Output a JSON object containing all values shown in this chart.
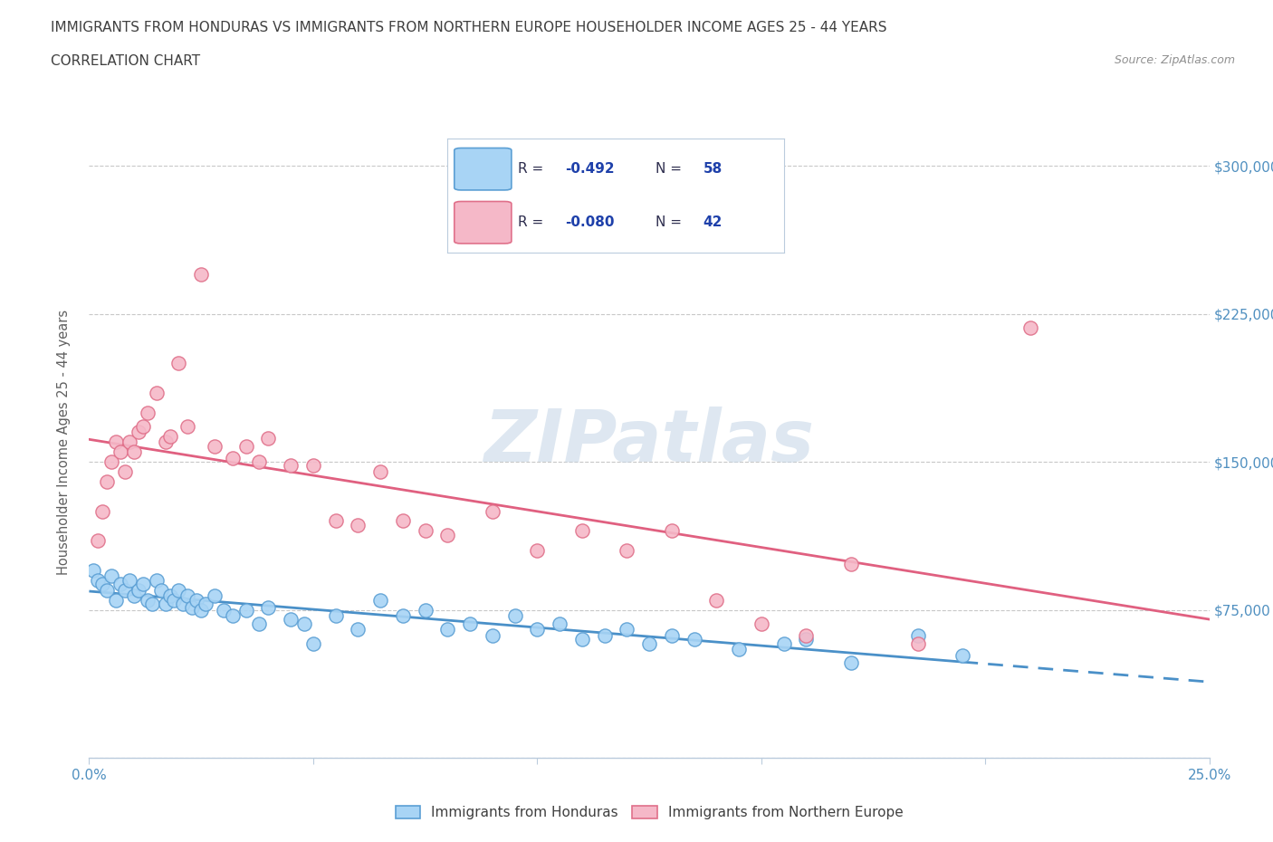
{
  "title_line1": "IMMIGRANTS FROM HONDURAS VS IMMIGRANTS FROM NORTHERN EUROPE HOUSEHOLDER INCOME AGES 25 - 44 YEARS",
  "title_line2": "CORRELATION CHART",
  "source_text": "Source: ZipAtlas.com",
  "ylabel": "Householder Income Ages 25 - 44 years",
  "xlim": [
    0.0,
    0.25
  ],
  "ylim": [
    0,
    320000
  ],
  "color_honduras": "#A8D4F5",
  "color_honduras_edge": "#5B9FD4",
  "color_ne": "#F5B8C8",
  "color_ne_edge": "#E0708A",
  "color_line_honduras": "#4A90C8",
  "color_line_ne": "#E06080",
  "legend_label_honduras": "Immigrants from Honduras",
  "legend_label_ne": "Immigrants from Northern Europe",
  "watermark_color": "#C8D8E8",
  "grid_color": "#C8C8C8",
  "background_color": "#FFFFFF",
  "title_color": "#404040",
  "source_color": "#909090",
  "axis_label_color": "#606060",
  "tick_label_color": "#5090C0",
  "honduras_x": [
    0.001,
    0.002,
    0.003,
    0.004,
    0.005,
    0.006,
    0.007,
    0.008,
    0.009,
    0.01,
    0.011,
    0.012,
    0.013,
    0.014,
    0.015,
    0.016,
    0.017,
    0.018,
    0.019,
    0.02,
    0.021,
    0.022,
    0.023,
    0.024,
    0.025,
    0.026,
    0.028,
    0.03,
    0.032,
    0.035,
    0.038,
    0.04,
    0.045,
    0.048,
    0.05,
    0.055,
    0.06,
    0.065,
    0.07,
    0.075,
    0.08,
    0.085,
    0.09,
    0.095,
    0.1,
    0.105,
    0.11,
    0.115,
    0.12,
    0.125,
    0.13,
    0.135,
    0.145,
    0.155,
    0.16,
    0.17,
    0.185,
    0.195
  ],
  "honduras_y": [
    95000,
    90000,
    88000,
    85000,
    92000,
    80000,
    88000,
    85000,
    90000,
    82000,
    85000,
    88000,
    80000,
    78000,
    90000,
    85000,
    78000,
    82000,
    80000,
    85000,
    78000,
    82000,
    76000,
    80000,
    75000,
    78000,
    82000,
    75000,
    72000,
    75000,
    68000,
    76000,
    70000,
    68000,
    58000,
    72000,
    65000,
    80000,
    72000,
    75000,
    65000,
    68000,
    62000,
    72000,
    65000,
    68000,
    60000,
    62000,
    65000,
    58000,
    62000,
    60000,
    55000,
    58000,
    60000,
    48000,
    62000,
    52000
  ],
  "ne_x": [
    0.002,
    0.003,
    0.004,
    0.005,
    0.006,
    0.007,
    0.008,
    0.009,
    0.01,
    0.011,
    0.012,
    0.013,
    0.015,
    0.017,
    0.018,
    0.02,
    0.022,
    0.025,
    0.028,
    0.032,
    0.035,
    0.038,
    0.04,
    0.045,
    0.05,
    0.055,
    0.06,
    0.065,
    0.07,
    0.075,
    0.08,
    0.09,
    0.1,
    0.11,
    0.12,
    0.13,
    0.14,
    0.15,
    0.16,
    0.17,
    0.185,
    0.21
  ],
  "ne_y": [
    110000,
    125000,
    140000,
    150000,
    160000,
    155000,
    145000,
    160000,
    155000,
    165000,
    168000,
    175000,
    185000,
    160000,
    163000,
    200000,
    168000,
    245000,
    158000,
    152000,
    158000,
    150000,
    162000,
    148000,
    148000,
    120000,
    118000,
    145000,
    120000,
    115000,
    113000,
    125000,
    105000,
    115000,
    105000,
    115000,
    80000,
    68000,
    62000,
    98000,
    58000,
    218000
  ]
}
